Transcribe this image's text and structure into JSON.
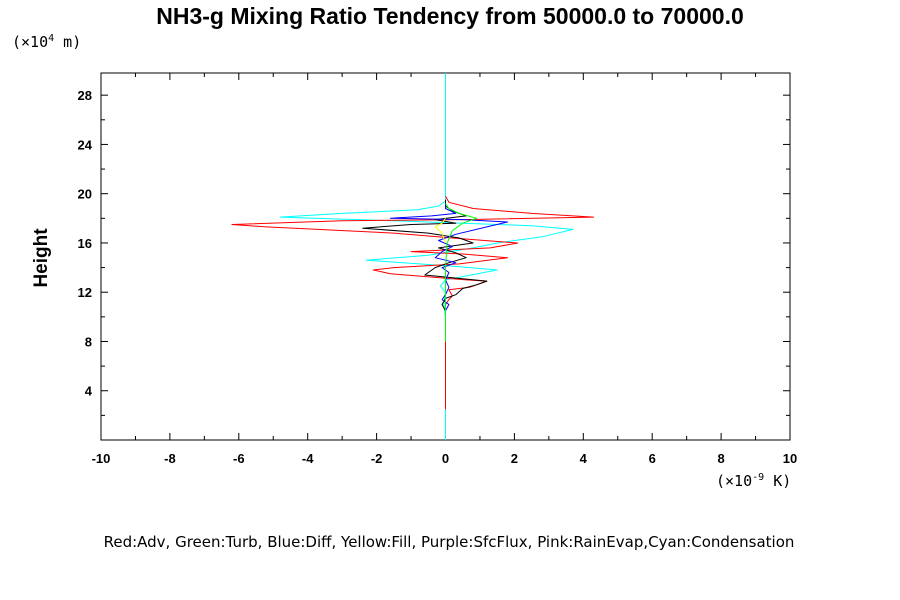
{
  "chart_data": {
    "type": "line",
    "title": "NH3-g Mixing Ratio Tendency from 50000.0 to 70000.0",
    "ylabel": "Height",
    "y_scale_base": "(×10",
    "y_scale_exp": "4",
    "y_scale_unit": " m)",
    "x_scale_base": "(×10",
    "x_scale_exp": "-9",
    "x_scale_unit": " K)",
    "xlim": [
      -10,
      10
    ],
    "ylim": [
      0,
      29.8
    ],
    "x_ticks": [
      -10,
      -8,
      -6,
      -4,
      -2,
      0,
      2,
      4,
      6,
      8,
      10
    ],
    "y_ticks": [
      4,
      8,
      12,
      16,
      20,
      24,
      28
    ],
    "legend_text": "Red:Adv, Green:Turb, Blue:Diff, Yellow:Fill, Purple:SfcFlux, Pink:RainEvap,Cyan:Condensation",
    "series": [
      {
        "color": "#00ffff",
        "points": [
          [
            0,
            0
          ],
          [
            0,
            8
          ],
          [
            0,
            10
          ],
          [
            -0.05,
            11
          ],
          [
            0,
            12
          ],
          [
            -0.15,
            12.5
          ],
          [
            0,
            13
          ],
          [
            1.5,
            13.8
          ],
          [
            0.3,
            14.1
          ],
          [
            -2.3,
            14.6
          ],
          [
            -0.5,
            15
          ],
          [
            0.8,
            15.6
          ],
          [
            1.5,
            16
          ],
          [
            2.8,
            16.5
          ],
          [
            3.7,
            17.1
          ],
          [
            2.5,
            17.4
          ],
          [
            0.5,
            17.6
          ],
          [
            -1.5,
            17.8
          ],
          [
            -4.8,
            18.1
          ],
          [
            -3,
            18.4
          ],
          [
            -0.8,
            18.7
          ],
          [
            -0.2,
            19
          ],
          [
            0,
            19.4
          ],
          [
            0,
            20
          ],
          [
            0,
            29.8
          ]
        ]
      },
      {
        "color": "#ff0000",
        "points": [
          [
            0,
            2.5
          ],
          [
            0,
            8
          ],
          [
            0,
            11
          ],
          [
            0.1,
            11.4
          ],
          [
            0.2,
            11.7
          ],
          [
            0.1,
            12.2
          ],
          [
            0.7,
            12.4
          ],
          [
            1.2,
            12.9
          ],
          [
            0.6,
            13
          ],
          [
            -1.6,
            13.5
          ],
          [
            -2.1,
            13.8
          ],
          [
            -1.5,
            14
          ],
          [
            0.4,
            14.3
          ],
          [
            1.8,
            14.8
          ],
          [
            0.5,
            15.1
          ],
          [
            -1,
            15.3
          ],
          [
            1.3,
            15.6
          ],
          [
            2.1,
            16
          ],
          [
            0.2,
            16.4
          ],
          [
            -1.5,
            16.8
          ],
          [
            -5.2,
            17.3
          ],
          [
            -6.2,
            17.5
          ],
          [
            -3,
            17.8
          ],
          [
            0.5,
            17.9
          ],
          [
            4.3,
            18.1
          ],
          [
            2.5,
            18.4
          ],
          [
            0.8,
            18.8
          ],
          [
            0.1,
            19.3
          ],
          [
            0,
            19.8
          ]
        ]
      },
      {
        "color": "#000000",
        "points": [
          [
            0,
            8
          ],
          [
            0,
            10.5
          ],
          [
            -0.1,
            11
          ],
          [
            0,
            11.5
          ],
          [
            0.3,
            11.8
          ],
          [
            0.5,
            12.3
          ],
          [
            0.9,
            12.6
          ],
          [
            1.2,
            12.9
          ],
          [
            0.5,
            13.1
          ],
          [
            -0.6,
            13.4
          ],
          [
            -0.3,
            14
          ],
          [
            0.1,
            14.4
          ],
          [
            0.6,
            14.8
          ],
          [
            0.3,
            15.2
          ],
          [
            -0.2,
            15.6
          ],
          [
            0.8,
            16
          ],
          [
            0.4,
            16.4
          ],
          [
            -0.5,
            16.8
          ],
          [
            -2.4,
            17.2
          ],
          [
            -1,
            17.5
          ],
          [
            0.3,
            17.6
          ],
          [
            -0.3,
            17.9
          ],
          [
            0.6,
            18.2
          ],
          [
            0.2,
            18.6
          ],
          [
            0,
            19
          ],
          [
            0,
            19.5
          ]
        ]
      },
      {
        "color": "#0000ff",
        "points": [
          [
            0,
            8
          ],
          [
            0,
            10.5
          ],
          [
            0.1,
            11
          ],
          [
            -0.1,
            11.4
          ],
          [
            0,
            11.8
          ],
          [
            0.1,
            12.4
          ],
          [
            0,
            13
          ],
          [
            0.1,
            13.6
          ],
          [
            -0.1,
            14
          ],
          [
            0.3,
            14.4
          ],
          [
            -0.3,
            14.8
          ],
          [
            -0.1,
            15.3
          ],
          [
            0.2,
            15.7
          ],
          [
            -0.2,
            16.2
          ],
          [
            0.3,
            16.7
          ],
          [
            1.2,
            17.3
          ],
          [
            1.8,
            17.7
          ],
          [
            0.5,
            17.9
          ],
          [
            -1.6,
            18
          ],
          [
            -0.4,
            18.2
          ],
          [
            0.3,
            18.4
          ],
          [
            0,
            18.8
          ],
          [
            0,
            19.2
          ]
        ]
      },
      {
        "color": "#00ff00",
        "points": [
          [
            0,
            8
          ],
          [
            0,
            11
          ],
          [
            0,
            14
          ],
          [
            0.05,
            16
          ],
          [
            0.2,
            17
          ],
          [
            0.5,
            17.6
          ],
          [
            0.9,
            18
          ],
          [
            0.4,
            18.4
          ],
          [
            0.1,
            18.8
          ],
          [
            0,
            19.2
          ]
        ]
      },
      {
        "color": "#ffff00",
        "points": [
          [
            0,
            16
          ],
          [
            -0.1,
            16.8
          ],
          [
            -0.3,
            17.3
          ],
          [
            -0.1,
            17.6
          ],
          [
            0,
            18
          ]
        ]
      }
    ]
  }
}
